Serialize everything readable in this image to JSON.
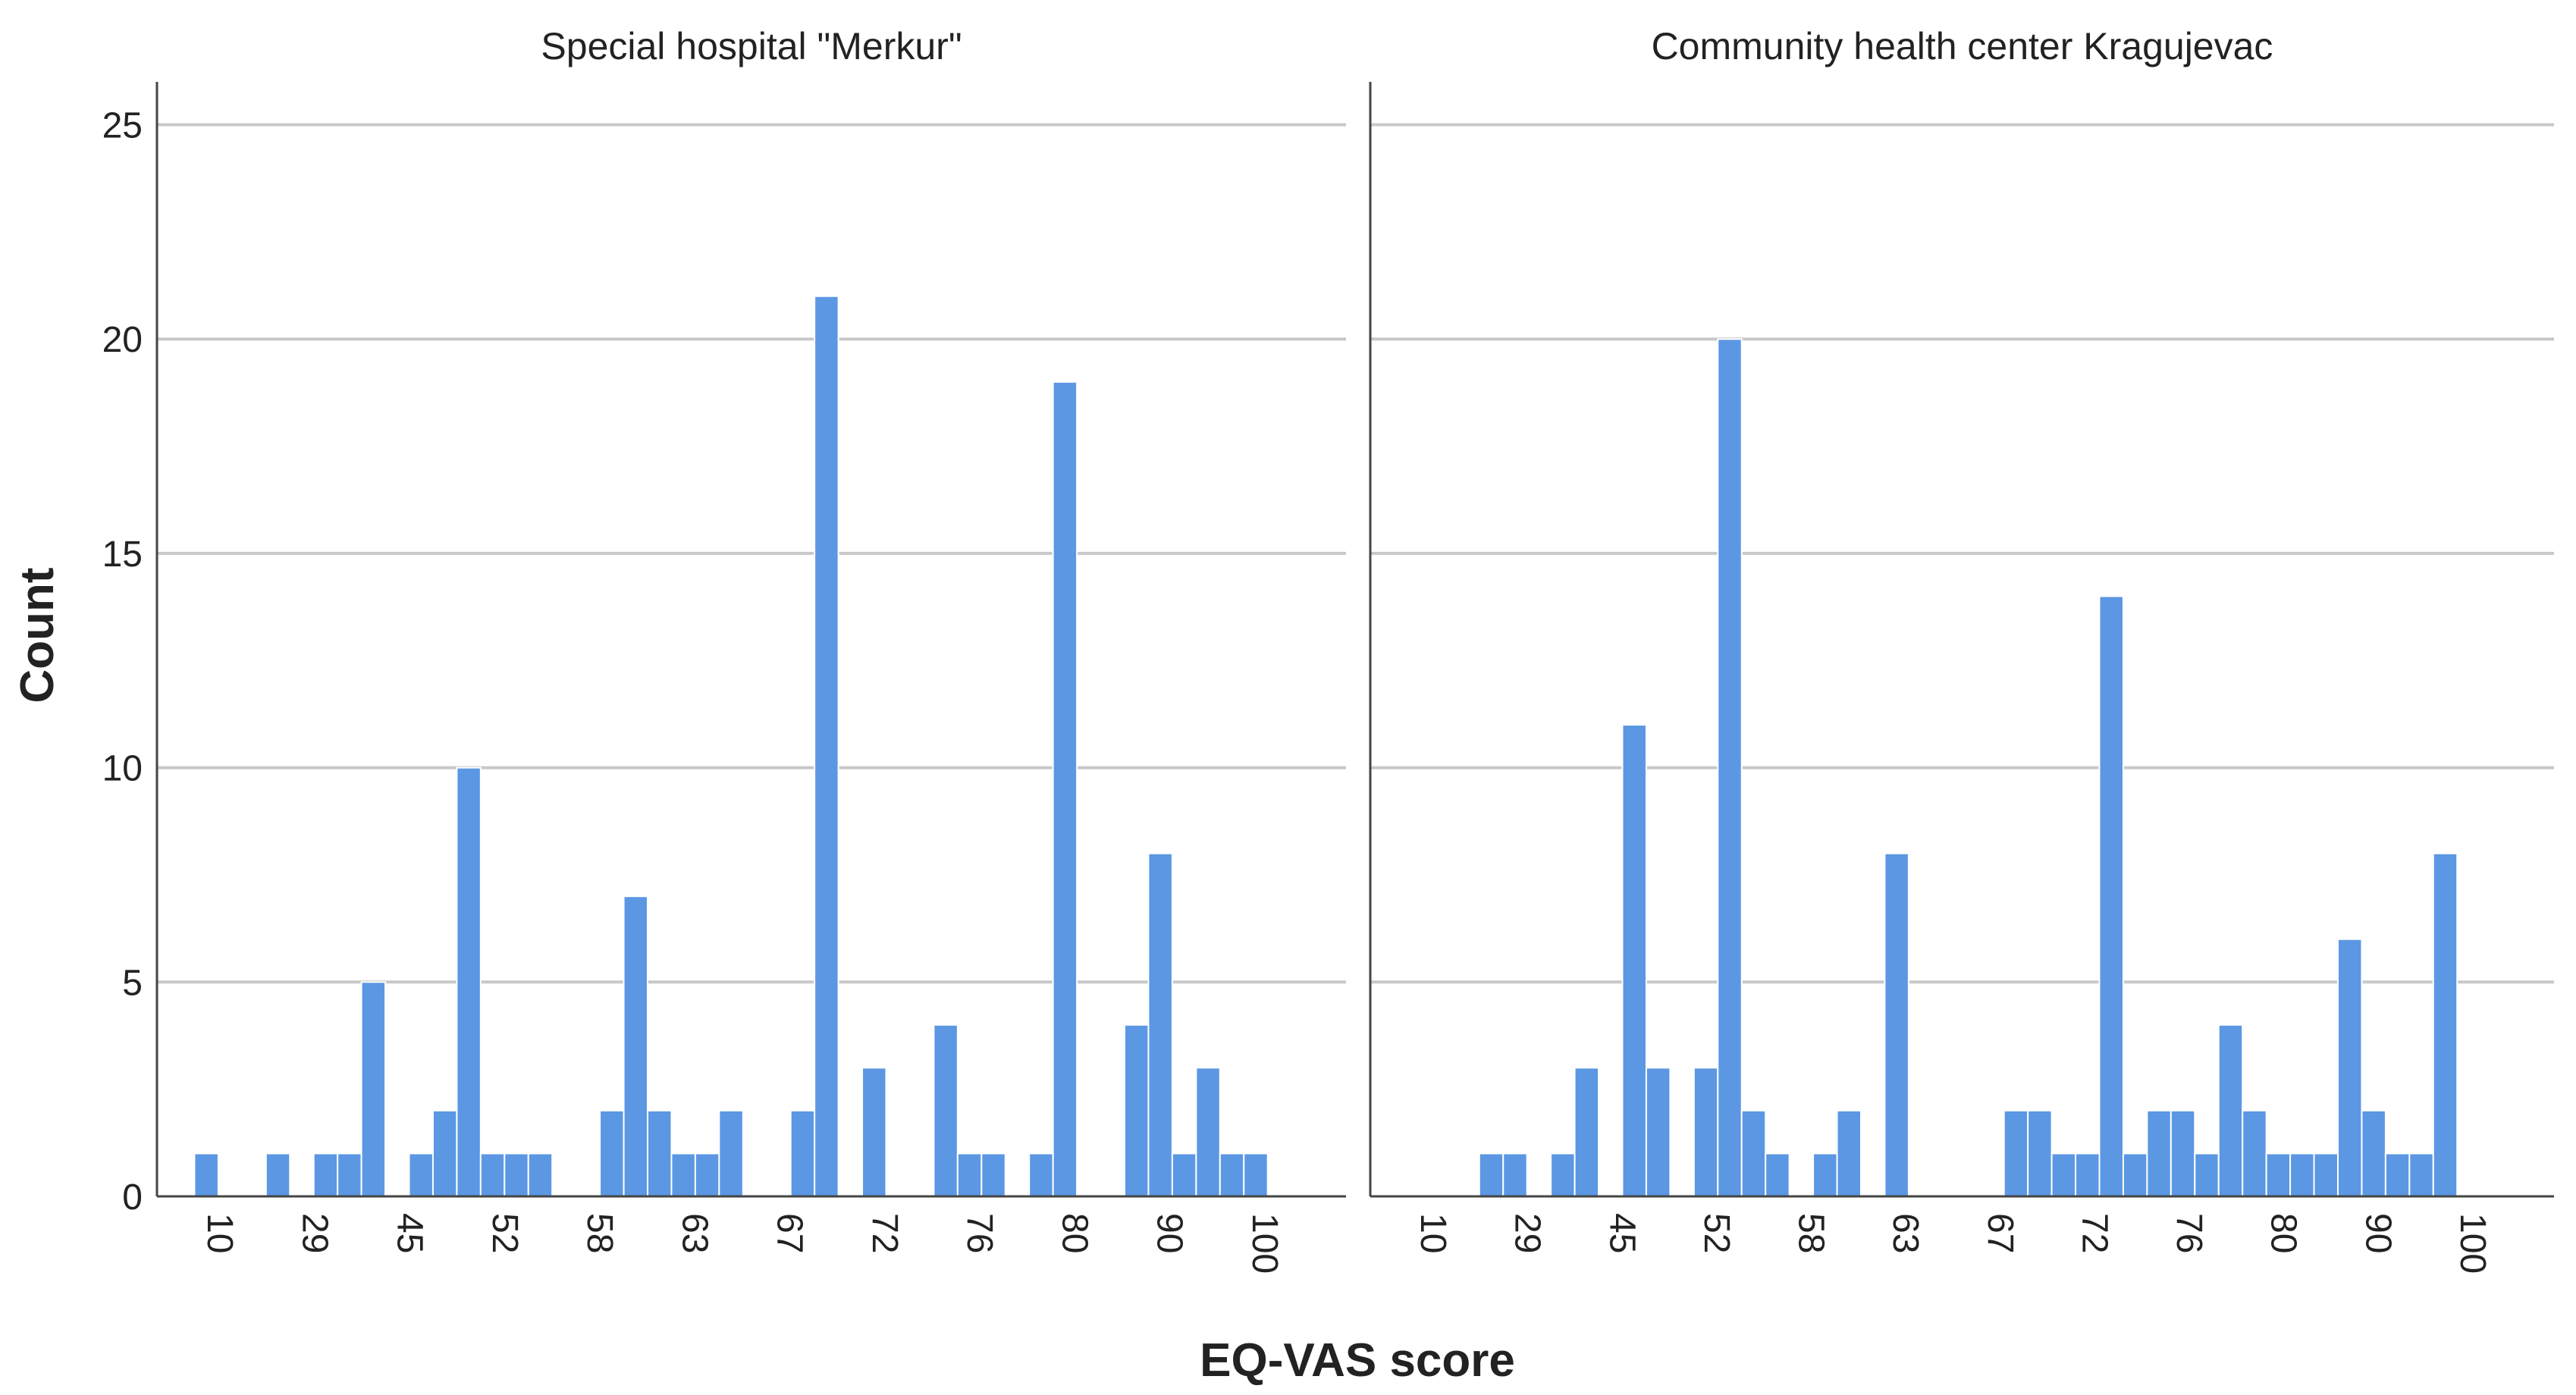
{
  "chart_data": {
    "type": "bar",
    "xlabel": "EQ-VAS score",
    "ylabel": "Count",
    "ylim": [
      0,
      26
    ],
    "yticks": [
      0,
      5,
      10,
      15,
      20,
      25
    ],
    "grid": true,
    "panels": [
      {
        "title": "Special hospital \"Merkur\"",
        "tick_labels": [
          "10",
          "29",
          "45",
          "52",
          "58",
          "63",
          "67",
          "72",
          "76",
          "80",
          "90",
          "100"
        ],
        "bars": [
          0,
          1,
          0,
          0,
          1,
          0,
          1,
          1,
          5,
          0,
          1,
          2,
          10,
          1,
          1,
          1,
          0,
          0,
          2,
          7,
          2,
          1,
          1,
          2,
          0,
          0,
          2,
          21,
          0,
          3,
          0,
          0,
          4,
          1,
          1,
          0,
          1,
          19,
          0,
          0,
          4,
          8,
          1,
          3,
          1,
          1
        ]
      },
      {
        "title": "Community health center Kragujevac",
        "tick_labels": [
          "10",
          "29",
          "45",
          "52",
          "58",
          "63",
          "67",
          "72",
          "76",
          "80",
          "90",
          "100"
        ],
        "bars": [
          0,
          0,
          0,
          0,
          1,
          1,
          0,
          1,
          3,
          0,
          11,
          3,
          0,
          3,
          20,
          2,
          1,
          0,
          1,
          2,
          0,
          8,
          0,
          0,
          0,
          0,
          2,
          2,
          1,
          1,
          14,
          1,
          2,
          2,
          1,
          4,
          2,
          1,
          1,
          1,
          6,
          2,
          1,
          1,
          8,
          0,
          0,
          0,
          0,
          0
        ]
      }
    ]
  }
}
